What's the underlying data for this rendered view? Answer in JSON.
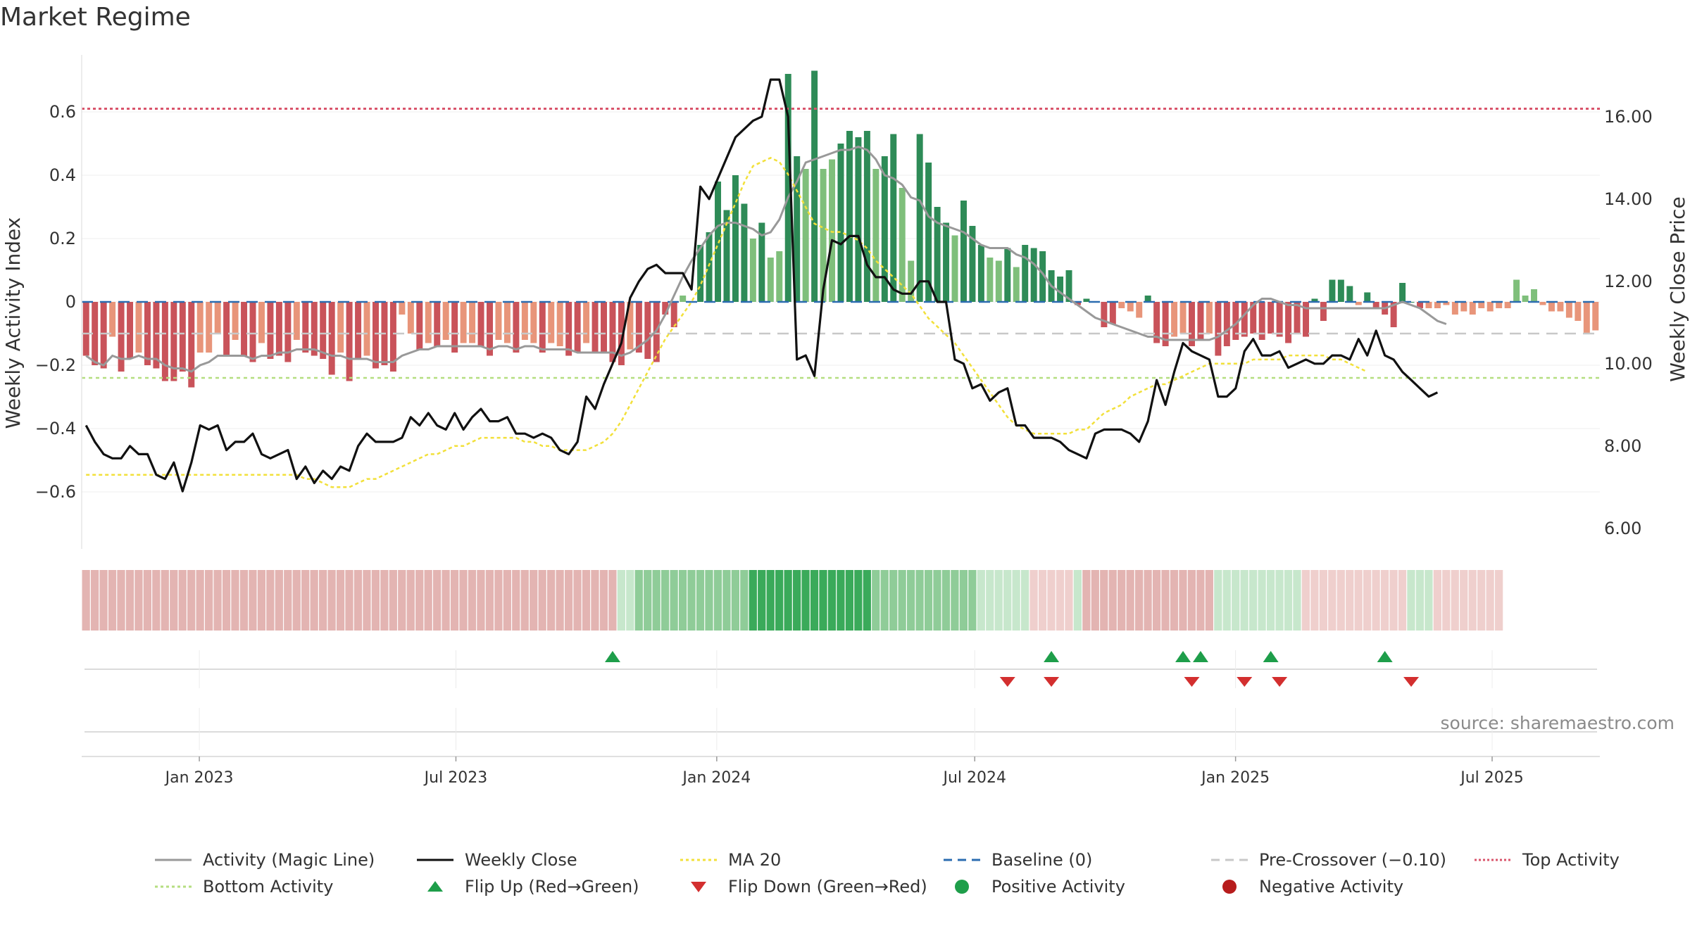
{
  "title": "Market Regime",
  "source": "source: sharemaestro.com",
  "colors": {
    "pos_dark": "#2e8b57",
    "pos_light": "#7fbf7b",
    "neg_dark": "#c9535a",
    "neg_light": "#e8957a",
    "magic": "#999999",
    "close": "#111111",
    "ma20": "#f2e03a",
    "baseline": "#2b6cb0",
    "precross": "#c8c8c8",
    "top": "#d9546b",
    "bottom": "#b5de80",
    "flip_up": "#1e9e4a",
    "flip_down": "#d32f2f"
  },
  "chart_data": {
    "type": "bar",
    "title": "Market Regime",
    "xlabel": "",
    "ylabel": "Weekly Activity Index",
    "y2label": "Weekly Close Price",
    "ylim": [
      -0.78,
      0.78
    ],
    "y_ticks": [
      0.6,
      0.4,
      0.2,
      0,
      -0.2,
      -0.4,
      -0.6
    ],
    "y_tick_labels": [
      "0.6",
      "0.4",
      "0.2",
      "0",
      "−0.2",
      "−0.4",
      "−0.6"
    ],
    "y2lim": [
      5.5,
      17.5
    ],
    "y2_ticks": [
      16,
      14,
      12,
      10,
      8,
      6
    ],
    "y2_tick_labels": [
      "16.00",
      "14.00",
      "12.00",
      "10.00",
      "8.00",
      "6.00"
    ],
    "x_range": [
      "2022-10-10",
      "2025-09-15"
    ],
    "x_ticks": [
      "2023-01-01",
      "2023-07-01",
      "2024-01-01",
      "2024-07-01",
      "2025-01-01",
      "2025-07-01"
    ],
    "x_tick_labels": [
      "Jan 2023",
      "Jul 2023",
      "Jan 2024",
      "Jul 2024",
      "Jan 2025",
      "Jul 2025"
    ],
    "start_date": "2022-10-10",
    "interval": "weekly",
    "reference_lines": {
      "top": 0.61,
      "baseline": 0,
      "pre_crossover": -0.1,
      "bottom": -0.24
    },
    "activity": [
      -0.17,
      -0.2,
      -0.21,
      -0.11,
      -0.22,
      -0.18,
      -0.16,
      -0.2,
      -0.21,
      -0.25,
      -0.25,
      -0.22,
      -0.27,
      -0.16,
      -0.16,
      -0.1,
      -0.17,
      -0.12,
      -0.17,
      -0.19,
      -0.13,
      -0.18,
      -0.17,
      -0.19,
      -0.12,
      -0.16,
      -0.17,
      -0.18,
      -0.23,
      -0.16,
      -0.25,
      -0.18,
      -0.17,
      -0.21,
      -0.2,
      -0.22,
      -0.04,
      -0.1,
      -0.15,
      -0.13,
      -0.14,
      -0.12,
      -0.16,
      -0.13,
      -0.13,
      -0.14,
      -0.17,
      -0.12,
      -0.13,
      -0.16,
      -0.12,
      -0.13,
      -0.16,
      -0.13,
      -0.14,
      -0.17,
      -0.16,
      -0.13,
      -0.16,
      -0.16,
      -0.19,
      -0.2,
      -0.15,
      -0.16,
      -0.18,
      -0.19,
      -0.04,
      -0.08,
      0.02,
      0,
      0.18,
      0.22,
      0.38,
      0.29,
      0.4,
      0.31,
      0.2,
      0.25,
      0.14,
      0.16,
      0.72,
      0.46,
      0.42,
      0.73,
      0.42,
      0.45,
      0.5,
      0.54,
      0.52,
      0.54,
      0.42,
      0.46,
      0.53,
      0.36,
      0.13,
      0.53,
      0.44,
      0.3,
      0.25,
      0.21,
      0.32,
      0.24,
      0.18,
      0.14,
      0.13,
      0.17,
      0.11,
      0.18,
      0.17,
      0.16,
      0.1,
      0.08,
      0.1,
      -0.01,
      0.01,
      0,
      -0.08,
      -0.07,
      -0.02,
      -0.03,
      -0.05,
      0.02,
      -0.13,
      -0.14,
      -0.11,
      -0.1,
      -0.14,
      -0.12,
      -0.1,
      -0.17,
      -0.14,
      -0.12,
      -0.11,
      -0.1,
      -0.12,
      -0.1,
      -0.11,
      -0.13,
      -0.1,
      -0.11,
      0.01,
      -0.06,
      0.07,
      0.07,
      0.05,
      -0.01,
      0.03,
      -0.02,
      -0.04,
      -0.08,
      0.06,
      0,
      -0.02,
      -0.02,
      -0.02,
      -0.01,
      -0.04,
      -0.03,
      -0.04,
      -0.02,
      -0.03,
      -0.02,
      -0.02,
      0.07,
      0.02,
      0.04,
      -0.01,
      -0.03,
      -0.03,
      -0.05,
      -0.06,
      -0.1,
      -0.09
    ],
    "weekly_close": [
      8.5,
      8.1,
      7.8,
      7.7,
      7.7,
      8.0,
      7.8,
      7.8,
      7.3,
      7.2,
      7.6,
      6.9,
      7.6,
      8.5,
      8.4,
      8.5,
      7.9,
      8.1,
      8.1,
      8.3,
      7.8,
      7.7,
      7.8,
      7.9,
      7.2,
      7.5,
      7.1,
      7.4,
      7.2,
      7.5,
      7.4,
      8.0,
      8.3,
      8.1,
      8.1,
      8.1,
      8.2,
      8.7,
      8.5,
      8.8,
      8.5,
      8.4,
      8.8,
      8.4,
      8.7,
      8.9,
      8.6,
      8.6,
      8.7,
      8.3,
      8.3,
      8.2,
      8.3,
      8.2,
      7.9,
      7.8,
      8.1,
      9.2,
      8.9,
      9.5,
      10.0,
      10.5,
      11.6,
      12.0,
      12.3,
      12.4,
      12.2,
      12.2,
      12.2,
      11.8,
      14.3,
      14.0,
      14.5,
      15.0,
      15.5,
      15.7,
      15.9,
      16.0,
      16.9,
      16.9,
      16.0,
      10.1,
      10.2,
      9.7,
      11.8,
      13.0,
      12.9,
      13.1,
      13.1,
      12.4,
      12.1,
      12.1,
      11.8,
      11.7,
      11.7,
      12.0,
      12.0,
      11.5,
      11.5,
      10.1,
      10.0,
      9.4,
      9.5,
      9.1,
      9.3,
      9.4,
      8.5,
      8.5,
      8.2,
      8.2,
      8.2,
      8.1,
      7.9,
      7.8,
      7.7,
      8.3,
      8.4,
      8.4,
      8.4,
      8.3,
      8.1,
      8.6,
      9.6,
      9.0,
      9.8,
      10.5,
      10.3,
      10.2,
      10.1,
      9.2,
      9.2,
      9.4,
      10.3,
      10.6,
      10.2,
      10.2,
      10.3,
      9.9,
      10.0,
      10.1,
      10.0,
      10.0,
      10.2,
      10.2,
      10.1,
      10.6,
      10.2,
      10.8,
      10.2,
      10.1,
      9.8,
      9.6,
      9.4,
      9.2,
      9.3
    ],
    "ma20": [
      7.3,
      7.3,
      7.3,
      7.3,
      7.3,
      7.3,
      7.3,
      7.3,
      7.3,
      7.3,
      7.3,
      7.3,
      7.3,
      7.3,
      7.3,
      7.3,
      7.3,
      7.3,
      7.3,
      7.3,
      7.3,
      7.3,
      7.3,
      7.3,
      7.3,
      7.2,
      7.2,
      7.1,
      7.0,
      7.0,
      7.0,
      7.1,
      7.2,
      7.2,
      7.3,
      7.4,
      7.5,
      7.6,
      7.7,
      7.8,
      7.8,
      7.9,
      8.0,
      8.0,
      8.1,
      8.2,
      8.2,
      8.2,
      8.2,
      8.2,
      8.1,
      8.1,
      8.0,
      8.0,
      7.9,
      7.9,
      7.9,
      7.9,
      8.0,
      8.1,
      8.3,
      8.6,
      9.0,
      9.4,
      9.8,
      10.2,
      10.6,
      10.9,
      11.2,
      11.5,
      11.9,
      12.4,
      12.9,
      13.4,
      13.9,
      14.4,
      14.8,
      14.9,
      15.0,
      14.9,
      14.6,
      14.2,
      13.8,
      13.4,
      13.3,
      13.2,
      13.2,
      13.1,
      13.0,
      12.8,
      12.5,
      12.3,
      12.1,
      11.9,
      11.7,
      11.4,
      11.1,
      10.9,
      10.7,
      10.5,
      10.2,
      9.9,
      9.6,
      9.3,
      9.0,
      8.7,
      8.5,
      8.4,
      8.3,
      8.3,
      8.3,
      8.3,
      8.3,
      8.4,
      8.4,
      8.6,
      8.8,
      8.9,
      9.0,
      9.2,
      9.3,
      9.4,
      9.5,
      9.5,
      9.6,
      9.7,
      9.8,
      9.9,
      10.0,
      10.0,
      10.0,
      10.0,
      10.0,
      10.1,
      10.1,
      10.1,
      10.1,
      10.2,
      10.2,
      10.2,
      10.2,
      10.2,
      10.1,
      10.1,
      10.0,
      9.9,
      9.8
    ],
    "magic_line": [
      -0.17,
      -0.19,
      -0.2,
      -0.17,
      -0.18,
      -0.18,
      -0.17,
      -0.18,
      -0.18,
      -0.2,
      -0.21,
      -0.21,
      -0.22,
      -0.2,
      -0.19,
      -0.17,
      -0.17,
      -0.17,
      -0.17,
      -0.18,
      -0.17,
      -0.17,
      -0.16,
      -0.16,
      -0.15,
      -0.15,
      -0.15,
      -0.16,
      -0.17,
      -0.17,
      -0.18,
      -0.18,
      -0.18,
      -0.19,
      -0.19,
      -0.19,
      -0.17,
      -0.16,
      -0.15,
      -0.15,
      -0.14,
      -0.14,
      -0.14,
      -0.14,
      -0.14,
      -0.14,
      -0.15,
      -0.14,
      -0.14,
      -0.15,
      -0.14,
      -0.14,
      -0.15,
      -0.15,
      -0.15,
      -0.15,
      -0.16,
      -0.16,
      -0.16,
      -0.16,
      -0.16,
      -0.17,
      -0.16,
      -0.14,
      -0.12,
      -0.09,
      -0.04,
      0.02,
      0.08,
      0.13,
      0.17,
      0.21,
      0.24,
      0.25,
      0.25,
      0.24,
      0.23,
      0.21,
      0.22,
      0.26,
      0.33,
      0.38,
      0.44,
      0.45,
      0.46,
      0.47,
      0.48,
      0.48,
      0.49,
      0.48,
      0.45,
      0.4,
      0.39,
      0.37,
      0.33,
      0.32,
      0.27,
      0.25,
      0.24,
      0.23,
      0.22,
      0.2,
      0.18,
      0.17,
      0.17,
      0.17,
      0.15,
      0.14,
      0.12,
      0.09,
      0.05,
      0.03,
      0.01,
      -0.01,
      -0.03,
      -0.05,
      -0.06,
      -0.07,
      -0.08,
      -0.09,
      -0.1,
      -0.11,
      -0.11,
      -0.12,
      -0.12,
      -0.12,
      -0.12,
      -0.12,
      -0.12,
      -0.11,
      -0.09,
      -0.07,
      -0.04,
      -0.01,
      0.01,
      0.01,
      0,
      -0.01,
      -0.01,
      -0.02,
      -0.02,
      -0.02,
      -0.02,
      -0.02,
      -0.02,
      -0.02,
      -0.02,
      -0.02,
      -0.02,
      -0.01,
      0,
      -0.01,
      -0.02,
      -0.04,
      -0.06,
      -0.07
    ],
    "regime_strip": [
      -2,
      -2,
      -2,
      -2,
      -2,
      -2,
      -2,
      -2,
      -2,
      -2,
      -2,
      -2,
      -2,
      -2,
      -2,
      -2,
      -2,
      -2,
      -2,
      -2,
      -2,
      -2,
      -2,
      -2,
      -2,
      -2,
      -2,
      -2,
      -2,
      -2,
      -2,
      -2,
      -2,
      -2,
      -2,
      -2,
      -2,
      -2,
      -2,
      -2,
      -2,
      -2,
      -2,
      -2,
      -2,
      -2,
      -2,
      -2,
      -2,
      -2,
      -2,
      -2,
      -2,
      -2,
      -2,
      -2,
      -2,
      -2,
      -2,
      -2,
      -2,
      1,
      1,
      2,
      2,
      2,
      2,
      2,
      2,
      2,
      2,
      2,
      2,
      2,
      2,
      2,
      3,
      3,
      3,
      3,
      3,
      3,
      3,
      3,
      3,
      3,
      3,
      3,
      3,
      3,
      2,
      2,
      2,
      2,
      2,
      2,
      2,
      2,
      2,
      2,
      2,
      2,
      1,
      1,
      1,
      1,
      1,
      1,
      -1,
      -1,
      -1,
      -1,
      -1,
      1,
      -2,
      -2,
      -2,
      -2,
      -2,
      -2,
      -2,
      -2,
      -2,
      -2,
      -2,
      -2,
      -2,
      -2,
      -2,
      1,
      1,
      1,
      1,
      1,
      1,
      1,
      1,
      1,
      1,
      -1,
      -1,
      -1,
      -1,
      -1,
      -1,
      -1,
      -1,
      -1,
      -1,
      -1,
      -1,
      1,
      1,
      1,
      -1,
      -1,
      -1,
      -1,
      -1,
      -1,
      -1,
      -1
    ],
    "flip_up_weeks": [
      60,
      110,
      125,
      127,
      135,
      148
    ],
    "flip_down_weeks": [
      105,
      110,
      126,
      132,
      136,
      151
    ],
    "legend": [
      {
        "label": "Activity (Magic Line)",
        "kind": "line",
        "color": "#999999",
        "dash": ""
      },
      {
        "label": "Weekly Close",
        "kind": "line",
        "color": "#111111",
        "dash": ""
      },
      {
        "label": "MA 20",
        "kind": "line",
        "color": "#f2e03a",
        "dash": "4,4"
      },
      {
        "label": "Baseline (0)",
        "kind": "line",
        "color": "#2b6cb0",
        "dash": "12,8"
      },
      {
        "label": "Pre-Crossover (−0.10)",
        "kind": "line",
        "color": "#c8c8c8",
        "dash": "12,8"
      },
      {
        "label": "Top Activity",
        "kind": "line",
        "color": "#d9546b",
        "dash": "3,3"
      },
      {
        "label": "Bottom Activity",
        "kind": "line",
        "color": "#b5de80",
        "dash": "4,4"
      },
      {
        "label": "Flip Up (Red→Green)",
        "kind": "tri-up",
        "color": "#1e9e4a"
      },
      {
        "label": "Flip Down (Green→Red)",
        "kind": "tri-down",
        "color": "#d32f2f"
      },
      {
        "label": "Positive Activity",
        "kind": "dot",
        "color": "#1e9e4a"
      },
      {
        "label": "Negative Activity",
        "kind": "dot",
        "color": "#b71c1c"
      }
    ]
  }
}
